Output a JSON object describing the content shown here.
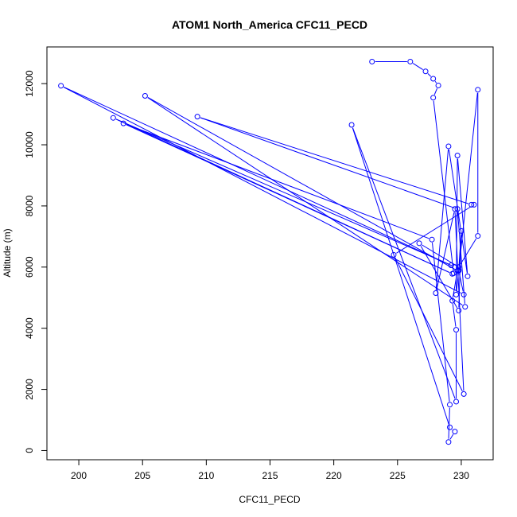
{
  "chart_data": {
    "type": "scatter",
    "title": "ATOM1 North_America CFC11_PECD",
    "xlabel": "CFC11_PECD",
    "ylabel": "Altitude (m)",
    "xlim": [
      197.5,
      232.5
    ],
    "ylim": [
      -300,
      13200
    ],
    "xticks": [
      200,
      205,
      210,
      215,
      220,
      225,
      230
    ],
    "yticks": [
      0,
      2000,
      4000,
      6000,
      8000,
      10000,
      12000
    ],
    "grid": false,
    "legend": "none",
    "line_color": "#0000ff",
    "series": [
      {
        "mode": "lines+markers",
        "points": [
          [
            223.0,
            12720
          ],
          [
            226.0,
            12720
          ],
          [
            227.2,
            12400
          ],
          [
            227.8,
            12160
          ],
          [
            228.2,
            11940
          ],
          [
            227.8,
            11540
          ],
          [
            229.4,
            5800
          ],
          [
            229.8,
            5880
          ],
          [
            230.2,
            5100
          ],
          [
            198.6,
            11930
          ],
          [
            229.5,
            6000
          ],
          [
            229.2,
            6060
          ],
          [
            202.7,
            10880
          ],
          [
            229.3,
            5780
          ],
          [
            203.5,
            10700
          ],
          [
            227.7,
            6900
          ],
          [
            229.1,
            1500
          ],
          [
            229.0,
            280
          ],
          [
            229.5,
            620
          ],
          [
            229.1,
            760
          ],
          [
            221.4,
            10650
          ],
          [
            229.6,
            1600
          ],
          [
            229.6,
            3950
          ],
          [
            229.3,
            4900
          ],
          [
            229.7,
            5880
          ],
          [
            205.2,
            11600
          ],
          [
            230.3,
            4700
          ],
          [
            229.7,
            7900
          ],
          [
            209.3,
            10920
          ],
          [
            230.8,
            8040
          ],
          [
            231.0,
            8040
          ],
          [
            224.7,
            6400
          ],
          [
            230.2,
            1850
          ],
          [
            229.5,
            7900
          ],
          [
            228.0,
            5150
          ],
          [
            229.0,
            9950
          ],
          [
            230.5,
            5700
          ],
          [
            229.7,
            9650
          ],
          [
            229.6,
            5100
          ],
          [
            231.3,
            11800
          ],
          [
            231.3,
            7020
          ],
          [
            229.8,
            6000
          ],
          [
            226.7,
            6780
          ],
          [
            229.8,
            4580
          ],
          [
            230.0,
            7180
          ],
          [
            229.8,
            5900
          ]
        ]
      }
    ]
  }
}
